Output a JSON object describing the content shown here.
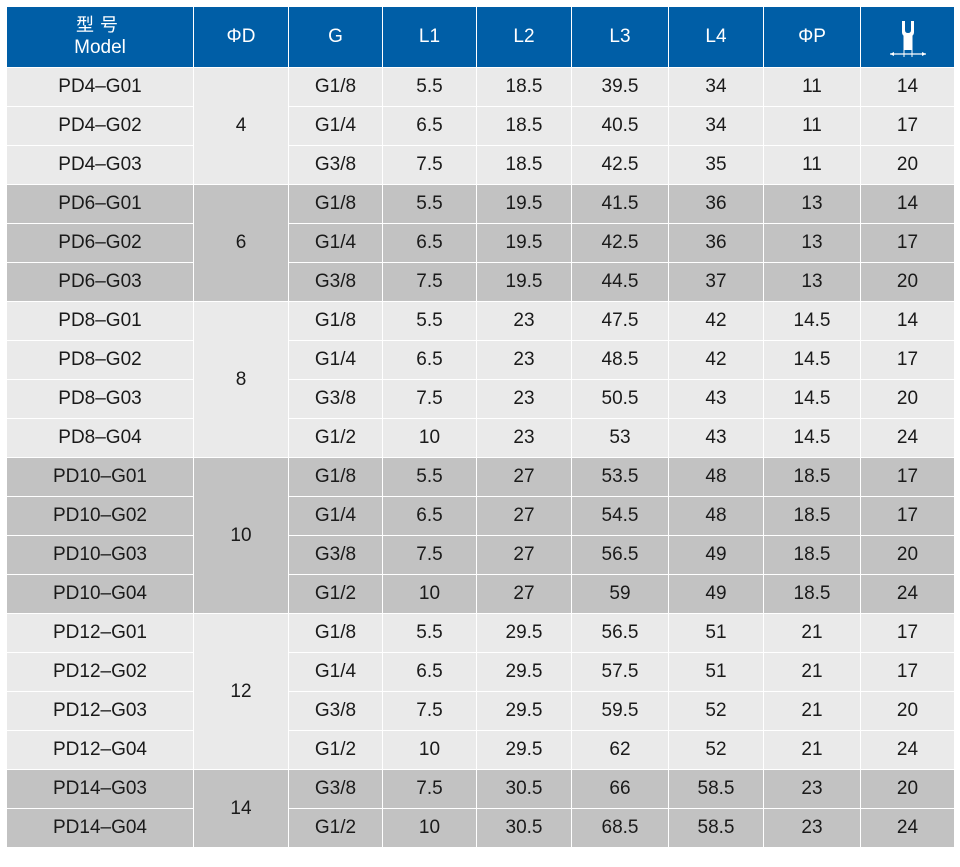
{
  "headers": {
    "model_cn": "型号",
    "model_en": "Model",
    "d": "ΦD",
    "g": "G",
    "l1": "L1",
    "l2": "L2",
    "l3": "L3",
    "l4": "L4",
    "p": "ΦP",
    "wrench_icon": "wrench-size-icon"
  },
  "groups": [
    {
      "d": "4",
      "rows": [
        {
          "model": "PD4–G01",
          "g": "G1/8",
          "l1": "5.5",
          "l2": "18.5",
          "l3": "39.5",
          "l4": "34",
          "p": "11",
          "w": "14"
        },
        {
          "model": "PD4–G02",
          "g": "G1/4",
          "l1": "6.5",
          "l2": "18.5",
          "l3": "40.5",
          "l4": "34",
          "p": "11",
          "w": "17"
        },
        {
          "model": "PD4–G03",
          "g": "G3/8",
          "l1": "7.5",
          "l2": "18.5",
          "l3": "42.5",
          "l4": "35",
          "p": "11",
          "w": "20"
        }
      ]
    },
    {
      "d": "6",
      "rows": [
        {
          "model": "PD6–G01",
          "g": "G1/8",
          "l1": "5.5",
          "l2": "19.5",
          "l3": "41.5",
          "l4": "36",
          "p": "13",
          "w": "14"
        },
        {
          "model": "PD6–G02",
          "g": "G1/4",
          "l1": "6.5",
          "l2": "19.5",
          "l3": "42.5",
          "l4": "36",
          "p": "13",
          "w": "17"
        },
        {
          "model": "PD6–G03",
          "g": "G3/8",
          "l1": "7.5",
          "l2": "19.5",
          "l3": "44.5",
          "l4": "37",
          "p": "13",
          "w": "20"
        }
      ]
    },
    {
      "d": "8",
      "rows": [
        {
          "model": "PD8–G01",
          "g": "G1/8",
          "l1": "5.5",
          "l2": "23",
          "l3": "47.5",
          "l4": "42",
          "p": "14.5",
          "w": "14"
        },
        {
          "model": "PD8–G02",
          "g": "G1/4",
          "l1": "6.5",
          "l2": "23",
          "l3": "48.5",
          "l4": "42",
          "p": "14.5",
          "w": "17"
        },
        {
          "model": "PD8–G03",
          "g": "G3/8",
          "l1": "7.5",
          "l2": "23",
          "l3": "50.5",
          "l4": "43",
          "p": "14.5",
          "w": "20"
        },
        {
          "model": "PD8–G04",
          "g": "G1/2",
          "l1": "10",
          "l2": "23",
          "l3": "53",
          "l4": "43",
          "p": "14.5",
          "w": "24"
        }
      ]
    },
    {
      "d": "10",
      "rows": [
        {
          "model": "PD10–G01",
          "g": "G1/8",
          "l1": "5.5",
          "l2": "27",
          "l3": "53.5",
          "l4": "48",
          "p": "18.5",
          "w": "17"
        },
        {
          "model": "PD10–G02",
          "g": "G1/4",
          "l1": "6.5",
          "l2": "27",
          "l3": "54.5",
          "l4": "48",
          "p": "18.5",
          "w": "17"
        },
        {
          "model": "PD10–G03",
          "g": "G3/8",
          "l1": "7.5",
          "l2": "27",
          "l3": "56.5",
          "l4": "49",
          "p": "18.5",
          "w": "20"
        },
        {
          "model": "PD10–G04",
          "g": "G1/2",
          "l1": "10",
          "l2": "27",
          "l3": "59",
          "l4": "49",
          "p": "18.5",
          "w": "24"
        }
      ]
    },
    {
      "d": "12",
      "rows": [
        {
          "model": "PD12–G01",
          "g": "G1/8",
          "l1": "5.5",
          "l2": "29.5",
          "l3": "56.5",
          "l4": "51",
          "p": "21",
          "w": "17"
        },
        {
          "model": "PD12–G02",
          "g": "G1/4",
          "l1": "6.5",
          "l2": "29.5",
          "l3": "57.5",
          "l4": "51",
          "p": "21",
          "w": "17"
        },
        {
          "model": "PD12–G03",
          "g": "G3/8",
          "l1": "7.5",
          "l2": "29.5",
          "l3": "59.5",
          "l4": "52",
          "p": "21",
          "w": "20"
        },
        {
          "model": "PD12–G04",
          "g": "G1/2",
          "l1": "10",
          "l2": "29.5",
          "l3": "62",
          "l4": "52",
          "p": "21",
          "w": "24"
        }
      ]
    },
    {
      "d": "14",
      "rows": [
        {
          "model": "PD14–G03",
          "g": "G3/8",
          "l1": "7.5",
          "l2": "30.5",
          "l3": "66",
          "l4": "58.5",
          "p": "23",
          "w": "20"
        },
        {
          "model": "PD14–G04",
          "g": "G1/2",
          "l1": "10",
          "l2": "30.5",
          "l3": "68.5",
          "l4": "58.5",
          "p": "23",
          "w": "24"
        }
      ]
    }
  ],
  "colors": {
    "header_bg": "#005ea6",
    "row_light": "#eaeaea",
    "row_dark": "#c2c2c2"
  }
}
